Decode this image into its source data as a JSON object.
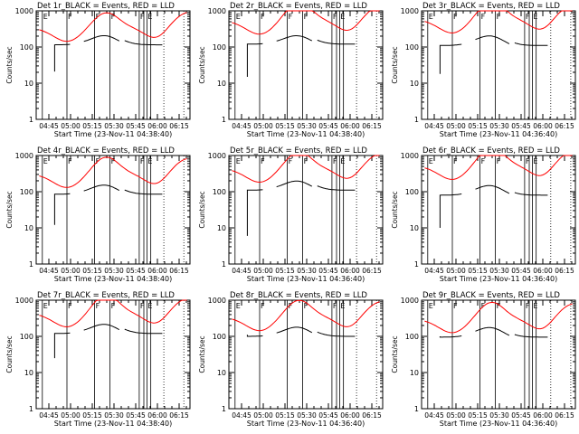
{
  "chart_data": [
    {
      "type": "line",
      "title": "Det 1r_BLACK = Events, RED = LLD",
      "xlabel": "Start Time (23-Nov-11 04:38:40)",
      "ylabel": "Counts/sec",
      "x_tick_labels": [
        "04:45",
        "05:00",
        "05:15",
        "05:30",
        "05:45",
        "06:00",
        "06:15"
      ],
      "y_tick_labels": [
        "1",
        "10",
        "100",
        "1000"
      ],
      "yscale": "log",
      "ylim": [
        1,
        1000
      ],
      "lld_start": 330,
      "lld_amp": 0.45,
      "evt_start": 21,
      "evt_lvl": 115,
      "evt_amp": 0.3,
      "gap1": [
        0.22,
        0.31
      ],
      "gap2": [
        0.54,
        0.575
      ],
      "dots": [
        0.83,
        0.96
      ],
      "series": [
        {
          "name": "Events",
          "color": "#000000"
        },
        {
          "name": "LLD",
          "color": "#ff0000"
        }
      ]
    },
    {
      "type": "line",
      "title": "Det 2r_BLACK = Events, RED = LLD",
      "xlabel": "Start Time (23-Nov-11 04:38:40)",
      "ylabel": "Counts/sec",
      "x_tick_labels": [
        "04:45",
        "05:00",
        "05:15",
        "05:30",
        "05:45",
        "06:00",
        "06:15"
      ],
      "y_tick_labels": [
        "1",
        "10",
        "100",
        "1000"
      ],
      "yscale": "log",
      "ylim": [
        1,
        1000
      ],
      "lld_start": 520,
      "lld_amp": 0.55,
      "evt_start": 15,
      "evt_lvl": 120,
      "evt_amp": 0.28,
      "gap1": [
        0.22,
        0.31
      ],
      "gap2": [
        0.54,
        0.575
      ],
      "dots": [
        0.83,
        0.96
      ],
      "series": [
        {
          "name": "Events",
          "color": "#000000"
        },
        {
          "name": "LLD",
          "color": "#ff0000"
        }
      ]
    },
    {
      "type": "line",
      "title": "Det 3r_BLACK = Events, RED = LLD",
      "xlabel": "Start Time (23-Nov-11 04:36:40)",
      "ylabel": "Counts/sec",
      "x_tick_labels": [
        "04:45",
        "05:00",
        "05:15",
        "05:30",
        "05:45",
        "06:00",
        "06:15"
      ],
      "y_tick_labels": [
        "1",
        "10",
        "100",
        "1000"
      ],
      "yscale": "log",
      "ylim": [
        1,
        1000
      ],
      "lld_start": 560,
      "lld_amp": 0.55,
      "evt_start": 18,
      "evt_lvl": 110,
      "evt_amp": 0.3,
      "gap1": [
        0.26,
        0.35
      ],
      "gap2": [
        0.57,
        0.605
      ],
      "dots": [
        0.84,
        0.97
      ],
      "series": [
        {
          "name": "Events",
          "color": "#000000"
        },
        {
          "name": "LLD",
          "color": "#ff0000"
        }
      ]
    },
    {
      "type": "line",
      "title": "Det 4r_BLACK = Events, RED = LLD",
      "xlabel": "Start Time (23-Nov-11 04:38:40)",
      "ylabel": "Counts/sec",
      "x_tick_labels": [
        "04:45",
        "05:00",
        "05:15",
        "05:30",
        "05:45",
        "06:00",
        "06:15"
      ],
      "y_tick_labels": [
        "1",
        "10",
        "100",
        "1000"
      ],
      "yscale": "log",
      "ylim": [
        1,
        1000
      ],
      "lld_start": 300,
      "lld_amp": 0.5,
      "evt_start": 12,
      "evt_lvl": 85,
      "evt_amp": 0.3,
      "gap1": [
        0.22,
        0.31
      ],
      "gap2": [
        0.54,
        0.575
      ],
      "dots": [
        0.83,
        0.96
      ],
      "series": [
        {
          "name": "Events",
          "color": "#000000"
        },
        {
          "name": "LLD",
          "color": "#ff0000"
        }
      ]
    },
    {
      "type": "line",
      "title": "Det 5r_BLACK = Events, RED = LLD",
      "xlabel": "Start Time (23-Nov-11 04:36:40)",
      "ylabel": "Counts/sec",
      "x_tick_labels": [
        "04:45",
        "05:00",
        "05:15",
        "05:30",
        "05:45",
        "06:00",
        "06:15"
      ],
      "y_tick_labels": [
        "1",
        "10",
        "100",
        "1000"
      ],
      "yscale": "log",
      "ylim": [
        1,
        1000
      ],
      "lld_start": 420,
      "lld_amp": 0.5,
      "evt_start": 6,
      "evt_lvl": 110,
      "evt_amp": 0.3,
      "gap1": [
        0.22,
        0.31
      ],
      "gap2": [
        0.54,
        0.575
      ],
      "dots": [
        0.83,
        0.96
      ],
      "series": [
        {
          "name": "Events",
          "color": "#000000"
        },
        {
          "name": "LLD",
          "color": "#ff0000"
        }
      ]
    },
    {
      "type": "line",
      "title": "Det 6r_BLACK = Events, RED = LLD",
      "xlabel": "Start Time (23-Nov-11 04:36:40)",
      "ylabel": "Counts/sec",
      "x_tick_labels": [
        "04:45",
        "05:00",
        "05:15",
        "05:30",
        "05:45",
        "06:00",
        "06:15"
      ],
      "y_tick_labels": [
        "1",
        "10",
        "100",
        "1000"
      ],
      "yscale": "log",
      "ylim": [
        1,
        1000
      ],
      "lld_start": 500,
      "lld_amp": 0.55,
      "evt_start": 10,
      "evt_lvl": 80,
      "evt_amp": 0.3,
      "gap1": [
        0.26,
        0.35
      ],
      "gap2": [
        0.57,
        0.605
      ],
      "dots": [
        0.84,
        0.97
      ],
      "series": [
        {
          "name": "Events",
          "color": "#000000"
        },
        {
          "name": "LLD",
          "color": "#ff0000"
        }
      ]
    },
    {
      "type": "line",
      "title": "Det 7r_BLACK = Events, RED = LLD",
      "xlabel": "Start Time (23-Nov-11 04:38:40)",
      "ylabel": "Counts/sec",
      "x_tick_labels": [
        "04:45",
        "05:00",
        "05:15",
        "05:30",
        "05:45",
        "06:00",
        "06:15"
      ],
      "y_tick_labels": [
        "1",
        "10",
        "100",
        "1000"
      ],
      "yscale": "log",
      "ylim": [
        1,
        1000
      ],
      "lld_start": 420,
      "lld_amp": 0.55,
      "evt_start": 25,
      "evt_lvl": 120,
      "evt_amp": 0.3,
      "gap1": [
        0.22,
        0.31
      ],
      "gap2": [
        0.54,
        0.575
      ],
      "dots": [
        0.83,
        0.96
      ],
      "series": [
        {
          "name": "Events",
          "color": "#000000"
        },
        {
          "name": "LLD",
          "color": "#ff0000"
        }
      ]
    },
    {
      "type": "line",
      "title": "Det 8r_BLACK = Events, RED = LLD",
      "xlabel": "Start Time (23-Nov-11 04:36:40)",
      "ylabel": "Counts/sec",
      "x_tick_labels": [
        "04:45",
        "05:00",
        "05:15",
        "05:30",
        "05:45",
        "06:00",
        "06:15"
      ],
      "y_tick_labels": [
        "1",
        "10",
        "100",
        "1000"
      ],
      "yscale": "log",
      "ylim": [
        1,
        1000
      ],
      "lld_start": 330,
      "lld_amp": 0.5,
      "evt_start": 110,
      "evt_lvl": 100,
      "evt_amp": 0.3,
      "gap1": [
        0.22,
        0.31
      ],
      "gap2": [
        0.54,
        0.575
      ],
      "dots": [
        0.83,
        0.96
      ],
      "series": [
        {
          "name": "Events",
          "color": "#000000"
        },
        {
          "name": "LLD",
          "color": "#ff0000"
        }
      ]
    },
    {
      "type": "line",
      "title": "Det 9r_BLACK = Events, RED = LLD",
      "xlabel": "Start Time (23-Nov-11 04:36:40)",
      "ylabel": "Counts/sec",
      "x_tick_labels": [
        "04:45",
        "05:00",
        "05:15",
        "05:30",
        "05:45",
        "06:00",
        "06:15"
      ],
      "y_tick_labels": [
        "1",
        "10",
        "100",
        "1000"
      ],
      "yscale": "log",
      "ylim": [
        1,
        1000
      ],
      "lld_start": 290,
      "lld_amp": 0.5,
      "evt_start": 100,
      "evt_lvl": 95,
      "evt_amp": 0.3,
      "gap1": [
        0.26,
        0.35
      ],
      "gap2": [
        0.57,
        0.605
      ],
      "dots": [
        0.84,
        0.97
      ],
      "series": [
        {
          "name": "Events",
          "color": "#000000"
        },
        {
          "name": "LLD",
          "color": "#ff0000"
        }
      ]
    }
  ]
}
